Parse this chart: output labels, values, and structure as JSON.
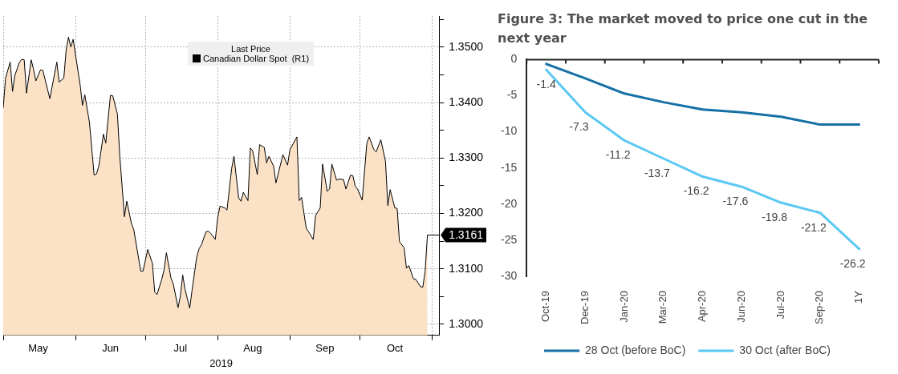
{
  "chart_data": [
    {
      "type": "area",
      "xlabel": "2019",
      "legend_title": "Last Price",
      "legend": "top",
      "grid": true,
      "xlim": [
        "2019-05-01",
        "2019-11-04"
      ],
      "xticks": [
        {
          "value": "2019-05-01",
          "label": null
        },
        {
          "value": "2019-05-16",
          "label": "May"
        },
        {
          "value": "2019-06-01",
          "label": null
        },
        {
          "value": "2019-06-16",
          "label": "Jun"
        },
        {
          "value": "2019-07-01",
          "label": null
        },
        {
          "value": "2019-07-16",
          "label": "Jul"
        },
        {
          "value": "2019-08-01",
          "label": null
        },
        {
          "value": "2019-08-16",
          "label": "Aug"
        },
        {
          "value": "2019-09-01",
          "label": null
        },
        {
          "value": "2019-09-16",
          "label": "Sep"
        },
        {
          "value": "2019-10-01",
          "label": null
        },
        {
          "value": "2019-10-16",
          "label": "Oct"
        },
        {
          "value": "2019-11-01",
          "label": null
        }
      ],
      "ylim": [
        1.298,
        1.3556
      ],
      "yticks": [
        {
          "value": 1.3,
          "label": "1.3000"
        },
        {
          "value": 1.305,
          "label": null
        },
        {
          "value": 1.31,
          "label": "1.3100"
        },
        {
          "value": 1.315,
          "label": null
        },
        {
          "value": 1.32,
          "label": "1.3200"
        },
        {
          "value": 1.325,
          "label": null
        },
        {
          "value": 1.33,
          "label": "1.3300"
        },
        {
          "value": 1.335,
          "label": null
        },
        {
          "value": 1.34,
          "label": "1.3400"
        },
        {
          "value": 1.345,
          "label": null
        },
        {
          "value": 1.35,
          "label": "1.3500"
        },
        {
          "value": 1.355,
          "label": null
        }
      ],
      "annotations": [
        {
          "text": "1.3161",
          "x": "2019-10-30",
          "y": 1.3161
        }
      ],
      "series": [
        {
          "name": "Canadian Dollar Spot  (R1)",
          "color": "#000000",
          "x": [
            "2019-05-01",
            "2019-05-02",
            "2019-05-04",
            "2019-05-05",
            "2019-05-06",
            "2019-05-08",
            "2019-05-09",
            "2019-05-10",
            "2019-05-11",
            "2019-05-13",
            "2019-05-14",
            "2019-05-15",
            "2019-05-17",
            "2019-05-18",
            "2019-05-21",
            "2019-05-24",
            "2019-05-25",
            "2019-05-27",
            "2019-05-28",
            "2019-05-29",
            "2019-05-30",
            "2019-05-31",
            "2019-06-03",
            "2019-06-04",
            "2019-06-05",
            "2019-06-07",
            "2019-06-09",
            "2019-06-10",
            "2019-06-11",
            "2019-06-13",
            "2019-06-14",
            "2019-06-16",
            "2019-06-17",
            "2019-06-19",
            "2019-06-20",
            "2019-06-22",
            "2019-06-23",
            "2019-06-25",
            "2019-06-26",
            "2019-06-29",
            "2019-06-30",
            "2019-07-02",
            "2019-07-04",
            "2019-07-05",
            "2019-07-06",
            "2019-07-08",
            "2019-07-09",
            "2019-07-10",
            "2019-07-12",
            "2019-07-13",
            "2019-07-15",
            "2019-07-16",
            "2019-07-17",
            "2019-07-18",
            "2019-07-20",
            "2019-07-21",
            "2019-07-23",
            "2019-07-24",
            "2019-07-25",
            "2019-07-27",
            "2019-07-28",
            "2019-07-29",
            "2019-07-31",
            "2019-08-01",
            "2019-08-02",
            "2019-08-04",
            "2019-08-05",
            "2019-08-07",
            "2019-08-08",
            "2019-08-10",
            "2019-08-11",
            "2019-08-12",
            "2019-08-14",
            "2019-08-15",
            "2019-08-16",
            "2019-08-18",
            "2019-08-19",
            "2019-08-21",
            "2019-08-22",
            "2019-08-23",
            "2019-08-25",
            "2019-08-26",
            "2019-08-29",
            "2019-08-31",
            "2019-09-01",
            "2019-09-04",
            "2019-09-05",
            "2019-09-06",
            "2019-09-08",
            "2019-09-09",
            "2019-09-11",
            "2019-09-12",
            "2019-09-14",
            "2019-09-15",
            "2019-09-17",
            "2019-09-18",
            "2019-09-19",
            "2019-09-21",
            "2019-09-22",
            "2019-09-24",
            "2019-09-25",
            "2019-09-27",
            "2019-09-28",
            "2019-09-29",
            "2019-09-30",
            "2019-10-02",
            "2019-10-04",
            "2019-10-05",
            "2019-10-07",
            "2019-10-08",
            "2019-10-10",
            "2019-10-12",
            "2019-10-13",
            "2019-10-14",
            "2019-10-16",
            "2019-10-17",
            "2019-10-18",
            "2019-10-20",
            "2019-10-21",
            "2019-10-22",
            "2019-10-24",
            "2019-10-25",
            "2019-10-27",
            "2019-10-28",
            "2019-10-29",
            "2019-10-30"
          ],
          "values": [
            1.339,
            1.3444,
            1.3473,
            1.342,
            1.3449,
            1.3473,
            1.3478,
            1.3477,
            1.3417,
            1.3477,
            1.346,
            1.3439,
            1.3459,
            1.3458,
            1.3407,
            1.3473,
            1.3437,
            1.3444,
            1.3495,
            1.3518,
            1.35,
            1.3514,
            1.3432,
            1.3395,
            1.3414,
            1.3364,
            1.3269,
            1.3271,
            1.3285,
            1.3343,
            1.3327,
            1.3413,
            1.3412,
            1.3379,
            1.3304,
            1.3194,
            1.3222,
            1.3182,
            1.3171,
            1.3096,
            1.3096,
            1.3135,
            1.311,
            1.3058,
            1.3054,
            1.3081,
            1.3098,
            1.3129,
            1.3083,
            1.3072,
            1.303,
            1.3051,
            1.3089,
            1.3063,
            1.3029,
            1.3061,
            1.3121,
            1.3136,
            1.3143,
            1.3167,
            1.3168,
            1.3164,
            1.3153,
            1.3192,
            1.3213,
            1.321,
            1.3206,
            1.3281,
            1.3303,
            1.3228,
            1.3222,
            1.3238,
            1.3223,
            1.3318,
            1.3313,
            1.327,
            1.3324,
            1.3319,
            1.3291,
            1.3303,
            1.3285,
            1.3255,
            1.3306,
            1.3287,
            1.3315,
            1.3338,
            1.3223,
            1.3229,
            1.3173,
            1.3167,
            1.3153,
            1.3196,
            1.321,
            1.3289,
            1.324,
            1.3244,
            1.3289,
            1.326,
            1.3262,
            1.3261,
            1.3244,
            1.3269,
            1.3268,
            1.3249,
            1.3244,
            1.3224,
            1.3327,
            1.3338,
            1.3315,
            1.3311,
            1.3333,
            1.3294,
            1.3214,
            1.3243,
            1.321,
            1.3209,
            1.3149,
            1.3138,
            1.3101,
            1.3106,
            1.3082,
            1.3081,
            1.3068,
            1.3067,
            1.3096,
            1.3161
          ]
        }
      ]
    },
    {
      "type": "line",
      "title": "Figure 3: The market moved to price one cut in the next year",
      "legend": "bottom",
      "categories": [
        "Oct-19",
        "Dec-19",
        "Jan-20",
        "Mar-20",
        "Apr-20",
        "Jun-20",
        "Jul-20",
        "Sep-20",
        "1Y"
      ],
      "ylim": [
        -30,
        0
      ],
      "yticks": [
        0,
        -5,
        -10,
        -15,
        -20,
        -25,
        -30
      ],
      "series": [
        {
          "name": "28 Oct (before BoC)",
          "color": "#1570a6",
          "values": [
            -0.6,
            -2.6,
            -4.7,
            -5.9,
            -6.9,
            -7.3,
            -7.9,
            -9.0,
            -9.0
          ]
        },
        {
          "name": "30 Oct (after BoC)",
          "color": "#5ac8f2",
          "values": [
            -1.4,
            -7.3,
            -11.2,
            -13.7,
            -16.2,
            -17.6,
            -19.8,
            -21.2,
            -26.2
          ],
          "value_labels": [
            "-1.4",
            "-7.3",
            "-11.2",
            "-13.7",
            "-16.2",
            "-17.6",
            "-19.8",
            "-21.2",
            "-26.2"
          ]
        }
      ]
    }
  ]
}
